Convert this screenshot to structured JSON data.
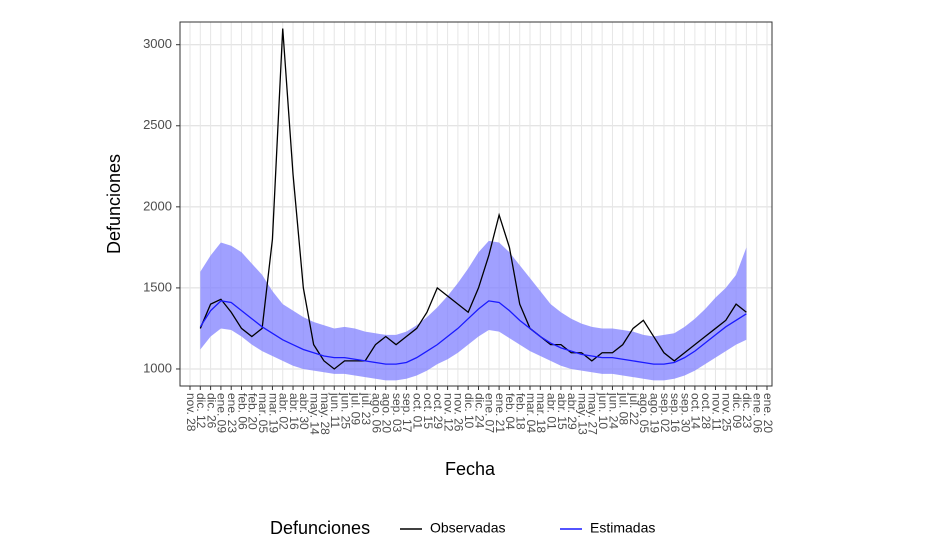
{
  "chart_data": {
    "type": "line",
    "x_label": "Fecha",
    "y_label": "Defunciones",
    "legend_title": "Defunciones",
    "legend_position": "bottom",
    "grid": true,
    "ylim": [
      895,
      3140
    ],
    "yticks": [
      1000,
      1500,
      2000,
      2500,
      3000
    ],
    "categories": [
      "nov. 28",
      "dic. 12",
      "dic. 26",
      "ene. 09",
      "ene. 23",
      "feb. 06",
      "feb. 20",
      "mar. 05",
      "mar. 19",
      "abr. 02",
      "abr. 16",
      "abr. 30",
      "may. 14",
      "may. 28",
      "jun. 11",
      "jun. 25",
      "jul. 09",
      "jul. 23",
      "ago. 06",
      "ago. 20",
      "sep. 03",
      "sep. 17",
      "oct. 01",
      "oct. 15",
      "oct. 29",
      "nov. 12",
      "nov. 26",
      "dic. 10",
      "dic. 24",
      "ene. 07",
      "ene. 21",
      "feb. 04",
      "feb. 18",
      "mar. 04",
      "mar. 18",
      "abr. 01",
      "abr. 15",
      "abr. 29",
      "may. 13",
      "may. 27",
      "jun. 10",
      "jun. 24",
      "jul. 08",
      "jul. 22",
      "ago. 05",
      "ago. 19",
      "sep. 02",
      "sep. 16",
      "sep. 30",
      "oct. 14",
      "oct. 28",
      "nov. 11",
      "nov. 25",
      "dic. 09",
      "dic. 23",
      "ene. 06",
      "ene. 20"
    ],
    "band": {
      "color": "#8080ff",
      "lower": [
        null,
        1120,
        1200,
        1250,
        1240,
        1200,
        1150,
        1110,
        1080,
        1050,
        1020,
        1000,
        990,
        980,
        970,
        970,
        960,
        950,
        940,
        930,
        930,
        940,
        960,
        990,
        1030,
        1060,
        1100,
        1150,
        1200,
        1240,
        1230,
        1190,
        1150,
        1110,
        1080,
        1050,
        1020,
        1000,
        990,
        980,
        970,
        970,
        960,
        950,
        940,
        930,
        930,
        940,
        960,
        990,
        1030,
        1070,
        1110,
        1150,
        1180,
        null,
        null
      ],
      "upper": [
        null,
        1600,
        1700,
        1780,
        1760,
        1720,
        1650,
        1580,
        1480,
        1400,
        1360,
        1320,
        1290,
        1270,
        1250,
        1260,
        1250,
        1230,
        1220,
        1210,
        1210,
        1230,
        1270,
        1320,
        1380,
        1450,
        1530,
        1620,
        1720,
        1790,
        1780,
        1720,
        1640,
        1560,
        1480,
        1400,
        1350,
        1310,
        1280,
        1260,
        1250,
        1250,
        1240,
        1230,
        1210,
        1200,
        1210,
        1220,
        1260,
        1310,
        1370,
        1440,
        1500,
        1580,
        1750,
        null,
        null
      ]
    },
    "series": [
      {
        "name": "Observadas",
        "color": "#000000",
        "values": [
          null,
          1250,
          1400,
          1430,
          1350,
          1250,
          1200,
          1250,
          1800,
          3100,
          2200,
          1500,
          1150,
          1050,
          1000,
          1050,
          1050,
          1050,
          1150,
          1200,
          1150,
          1200,
          1250,
          1350,
          1500,
          1450,
          1400,
          1350,
          1500,
          1700,
          1950,
          1750,
          1400,
          1250,
          1200,
          1150,
          1150,
          1100,
          1100,
          1050,
          1100,
          1100,
          1150,
          1250,
          1300,
          1200,
          1100,
          1050,
          1100,
          1150,
          1200,
          1250,
          1300,
          1400,
          1350,
          null,
          null
        ]
      },
      {
        "name": "Estimadas",
        "color": "#1a1aff",
        "values": [
          null,
          1260,
          1360,
          1420,
          1410,
          1360,
          1310,
          1260,
          1220,
          1180,
          1150,
          1120,
          1100,
          1080,
          1070,
          1070,
          1060,
          1050,
          1040,
          1030,
          1030,
          1040,
          1070,
          1110,
          1150,
          1200,
          1250,
          1310,
          1370,
          1420,
          1410,
          1360,
          1300,
          1250,
          1200,
          1160,
          1130,
          1110,
          1090,
          1080,
          1070,
          1070,
          1060,
          1050,
          1040,
          1030,
          1030,
          1040,
          1070,
          1110,
          1160,
          1210,
          1260,
          1300,
          1340,
          null,
          null
        ]
      }
    ]
  }
}
